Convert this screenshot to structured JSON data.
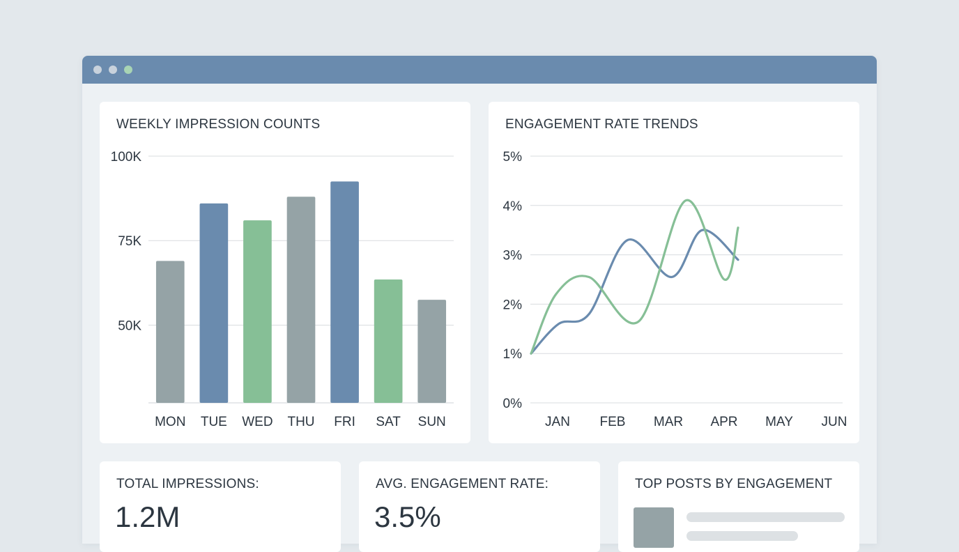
{
  "colors": {
    "slate_blue": "#6a8bae",
    "green": "#86bf96",
    "gray": "#95a3a6",
    "grid": "#d8dcdf",
    "text": "#2c3640",
    "titlebar_dot_gray": "#c8d2dc",
    "titlebar_dot_green": "#a8d4b4"
  },
  "window": {
    "dots": [
      "gray",
      "gray",
      "green"
    ]
  },
  "chart_data": [
    {
      "type": "bar",
      "title": "WEEKLY IMPRESSION COUNTS",
      "categories": [
        "MON",
        "TUE",
        "WED",
        "THU",
        "FRI",
        "SAT",
        "SUN"
      ],
      "values": [
        69000,
        86000,
        81000,
        88000,
        92500,
        63500,
        57500
      ],
      "bar_colors": [
        "gray",
        "slate_blue",
        "green",
        "gray",
        "slate_blue",
        "green",
        "gray"
      ],
      "y_ticks": [
        50000,
        75000,
        100000
      ],
      "y_tick_labels": [
        "50K",
        "75K",
        "100K"
      ],
      "ylim": [
        27000,
        100000
      ],
      "xlabel": "",
      "ylabel": "",
      "grid": true
    },
    {
      "type": "line",
      "title": "ENGAGEMENT RATE TRENDS",
      "x": [
        "JAN",
        "FEB",
        "MAR",
        "APR",
        "MAY",
        "JUN"
      ],
      "x_ticks_shown": [
        "JAN",
        "FEB",
        "MAR",
        "APR",
        "MAY",
        "JUN"
      ],
      "series": [
        {
          "color": "slate_blue",
          "points": [
            [
              0,
              1.0
            ],
            [
              0.5,
              1.6
            ],
            [
              1.05,
              1.8
            ],
            [
              1.75,
              3.3
            ],
            [
              2.55,
              2.55
            ],
            [
              3.1,
              3.5
            ],
            [
              3.75,
              2.9
            ]
          ]
        },
        {
          "color": "green",
          "points": [
            [
              0,
              1.0
            ],
            [
              0.45,
              2.2
            ],
            [
              1.05,
              2.55
            ],
            [
              1.95,
              1.65
            ],
            [
              2.8,
              4.1
            ],
            [
              3.5,
              2.5
            ],
            [
              3.75,
              3.55
            ]
          ]
        }
      ],
      "y_ticks": [
        0,
        1,
        2,
        3,
        4,
        5
      ],
      "y_tick_labels": [
        "0%",
        "1%",
        "2%",
        "3%",
        "4%",
        "5%"
      ],
      "ylim": [
        0,
        5
      ],
      "xlabel": "",
      "ylabel": "",
      "grid": true
    }
  ],
  "kpis": [
    {
      "label": "TOTAL IMPRESSIONS:",
      "value": "1.2M"
    },
    {
      "label": "AVG. ENGAGEMENT RATE:",
      "value": "3.5%"
    }
  ],
  "top_posts": {
    "title": "TOP POSTS BY ENGAGEMENT"
  }
}
